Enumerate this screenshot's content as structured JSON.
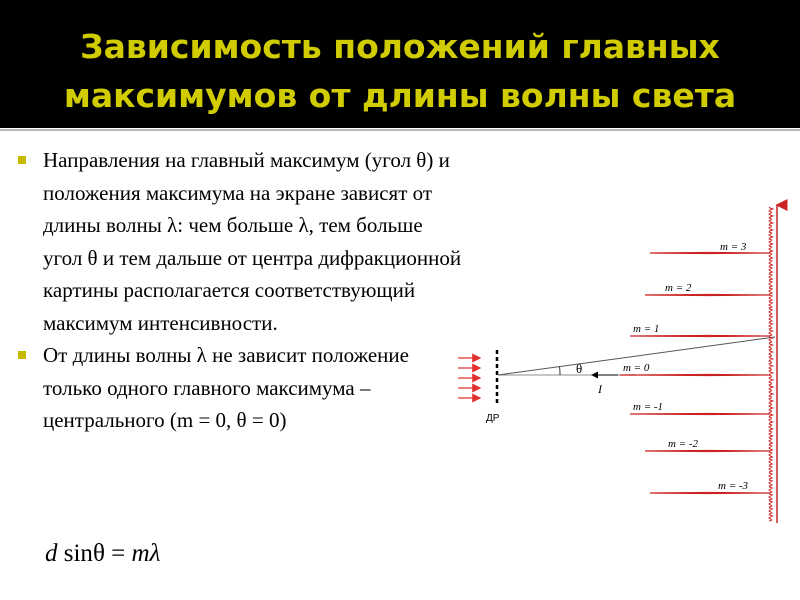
{
  "slide": {
    "title_line1": "Зависимость положений главных",
    "title_line2": "максимумов от длины волны света",
    "bullets": [
      "Направления на главный максимум (угол θ) и положения максимума на экране зависят от длины волны λ: чем больше λ, тем больше угол θ и тем дальше от центра дифракционной картины располагается соответствующий максимум интенсивности.",
      "От длины волны λ не зависит положение только одного главного максимума – центрального (m = 0, θ = 0)"
    ],
    "formula": {
      "d": "d",
      "sin": "sin",
      "theta": "θ",
      "eq": "=",
      "m": "m",
      "lambda": "λ"
    }
  },
  "diagram": {
    "grating_label": "ДР",
    "angle_label": "θ",
    "intensity_label": "I",
    "orders": [
      {
        "m": "3",
        "label": "m = 3"
      },
      {
        "m": "2",
        "label": "m = 2"
      },
      {
        "m": "1",
        "label": "m = 1"
      },
      {
        "m": "0",
        "label": "m = 0"
      },
      {
        "m": "-1",
        "label": "m = -1"
      },
      {
        "m": "-2",
        "label": "m = -2"
      },
      {
        "m": "-3",
        "label": "m = -3"
      }
    ],
    "colors": {
      "incident_arrows": "#e03030",
      "peaks": "#cc2222",
      "screen": "#cc2222",
      "title": "#d0cc00",
      "bullet": "#c7b800"
    }
  }
}
